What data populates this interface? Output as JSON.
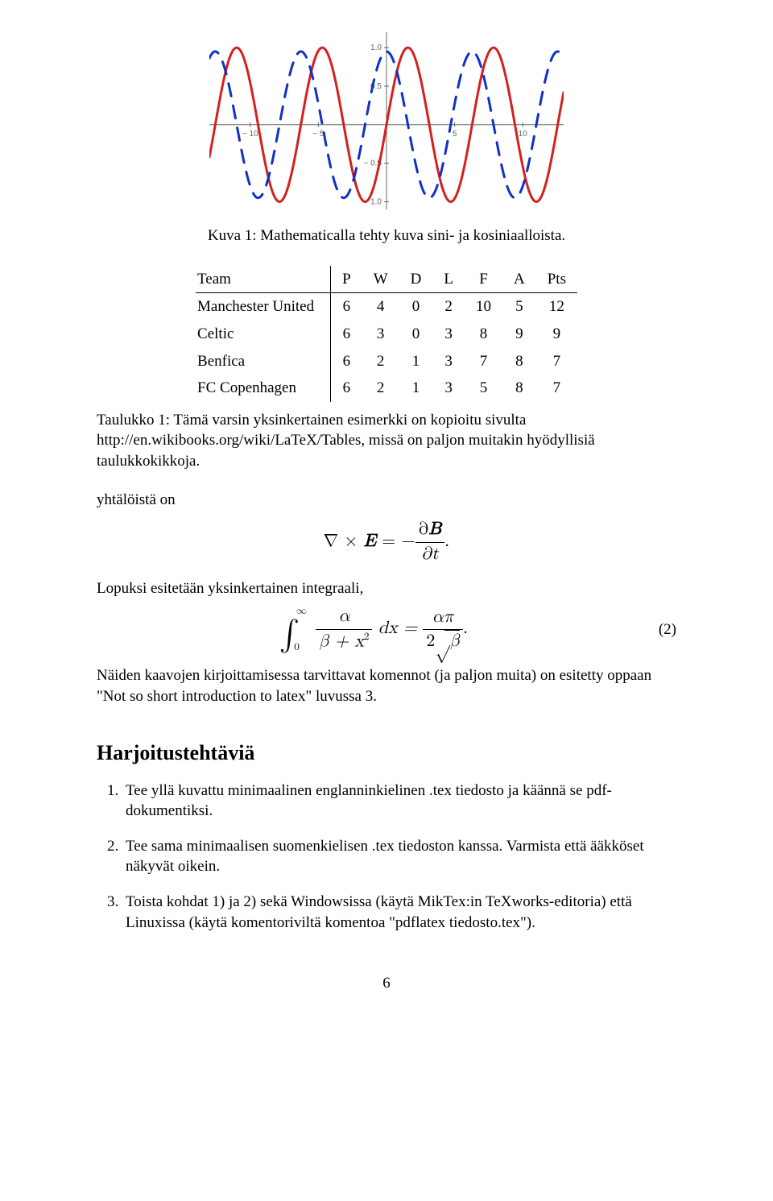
{
  "chart": {
    "type": "line",
    "x_range": [
      -13,
      13
    ],
    "y_range": [
      -1.1,
      1.2
    ],
    "xticks": [
      -10,
      -5,
      5,
      10
    ],
    "yticks": [
      -1.0,
      -0.5,
      0.5,
      1.0
    ],
    "axis_color": "#666666",
    "tick_font_size": 10,
    "gridline_color": "#d0d0d0",
    "background_color": "#ffffff",
    "series": [
      {
        "name": "sin",
        "color": "#d42020",
        "stroke_width": 3,
        "dash": "none",
        "fn": "sin",
        "amplitude": 1.0,
        "phase": 0,
        "period": 6.2832
      },
      {
        "name": "cos",
        "color": "#1030c8",
        "stroke_width": 3,
        "dash": "16 12",
        "fn": "cos",
        "amplitude": 0.95,
        "phase": 0,
        "period": 6.2832
      }
    ]
  },
  "figure": {
    "label": "Kuva 1: Mathematicalla tehty kuva sini- ja kosiniaalloista."
  },
  "table": {
    "columns": [
      "Team",
      "P",
      "W",
      "D",
      "L",
      "F",
      "A",
      "Pts"
    ],
    "rows": [
      [
        "Manchester United",
        "6",
        "4",
        "0",
        "2",
        "10",
        "5",
        "12"
      ],
      [
        "Celtic",
        "6",
        "3",
        "0",
        "3",
        "8",
        "9",
        "9"
      ],
      [
        "Benfica",
        "6",
        "2",
        "1",
        "3",
        "7",
        "8",
        "7"
      ],
      [
        "FC Copenhagen",
        "6",
        "2",
        "1",
        "3",
        "5",
        "8",
        "7"
      ]
    ]
  },
  "table_caption": "Taulukko 1: Tämä varsin yksinkertainen esimerkki on kopioitu sivulta http://en.wikibooks.org/wiki/LaTeX/Tables, missä on paljon muitakin hyödyllisiä taulukkokikkoja.",
  "body": {
    "p1": "yhtälöistä on",
    "p2": "Lopuksi esitetään yksinkertainen integraali,",
    "p3": "Näiden kaavojen kirjoittamisessa tarvittavat komennot (ja paljon muita) on esitetty oppaan \"Not so short introduction to latex\" luvussa 3."
  },
  "eq1": {
    "lhs_pre": "∇ × ",
    "lhs_var": "E",
    "eq": " = −",
    "rhs_num_pre": "∂",
    "rhs_num_var": "B",
    "rhs_den": "∂t",
    "end": "."
  },
  "eq2": {
    "int_lower": "0",
    "int_upper": "∞",
    "frac1_num": "α",
    "frac1_den_a": "β + x",
    "frac1_den_exp": "2",
    "mid": " dx = ",
    "frac2_num": "απ",
    "frac2_den_coef": "2",
    "frac2_den_rad": "β",
    "end": ".",
    "number": "(2)"
  },
  "section_title": "Harjoitustehtäviä",
  "exercises": [
    "Tee yllä kuvattu minimaalinen englanninkielinen .tex tiedosto ja käännä se pdf-dokumentiksi.",
    "Tee sama minimaalisen suomenkielisen .tex tiedoston kanssa. Varmista että ääkköset näkyvät oikein.",
    "Toista kohdat 1) ja 2) sekä Windowsissa (käytä MikTex:in TeXworks-editoria) että Linuxissa (käytä komentoriviltä komentoa \"pdflatex tiedosto.tex\")."
  ],
  "page_number": "6"
}
